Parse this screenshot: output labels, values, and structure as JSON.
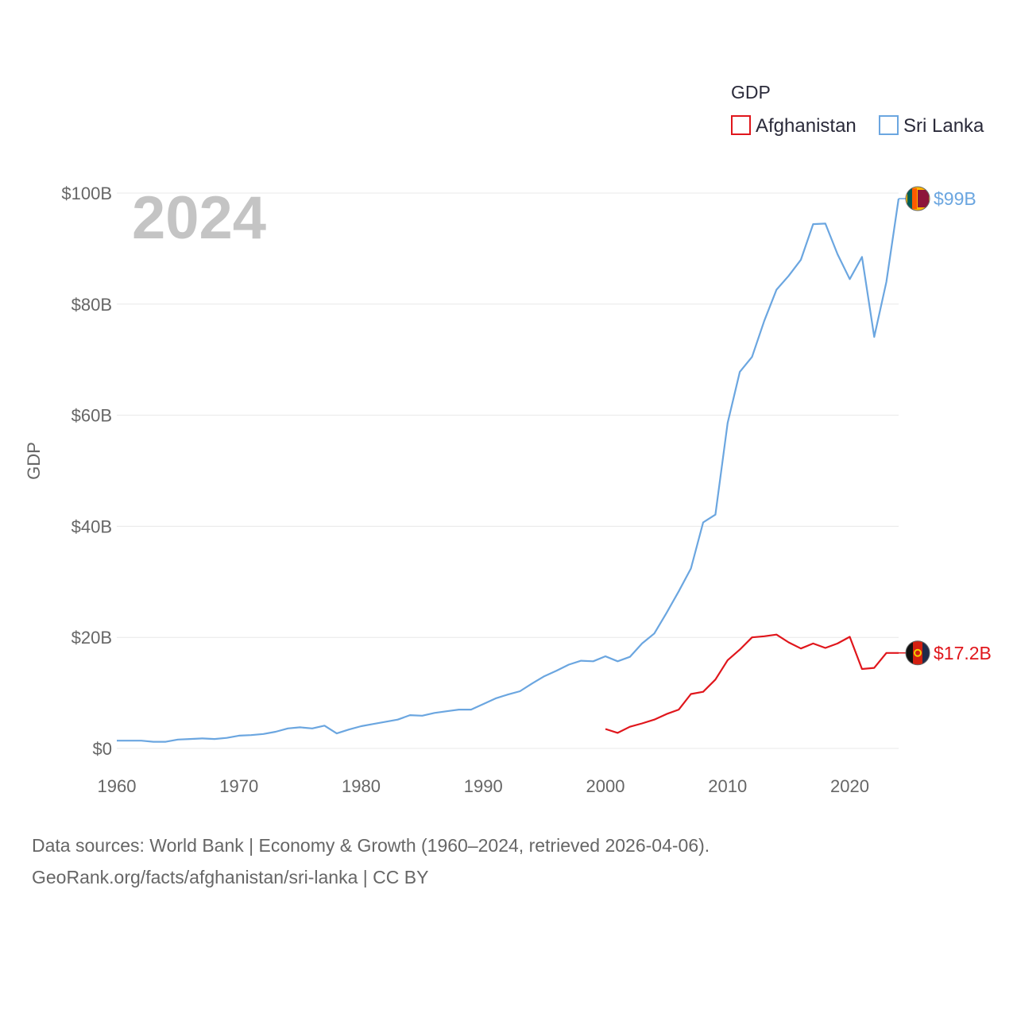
{
  "chart_data": {
    "type": "line",
    "title": "",
    "year_label": "2024",
    "ylabel": "GDP",
    "xlabel": "",
    "xlim": [
      1960,
      2024
    ],
    "ylim": [
      0,
      100
    ],
    "x_ticks": [
      1960,
      1970,
      1980,
      1990,
      2000,
      2010,
      2020
    ],
    "y_ticks": [
      {
        "value": 0,
        "label": "$0"
      },
      {
        "value": 20,
        "label": "$20B"
      },
      {
        "value": 40,
        "label": "$40B"
      },
      {
        "value": 60,
        "label": "$60B"
      },
      {
        "value": 80,
        "label": "$80B"
      },
      {
        "value": 100,
        "label": "$100B"
      }
    ],
    "grid": true,
    "legend": {
      "title": "GDP",
      "position": "top-right",
      "entries": [
        "Afghanistan",
        "Sri Lanka"
      ]
    },
    "series": [
      {
        "name": "Afghanistan",
        "color": "#e0161c",
        "end_label": "$17.2B",
        "x": [
          2000,
          2001,
          2002,
          2003,
          2004,
          2005,
          2006,
          2007,
          2008,
          2009,
          2010,
          2011,
          2012,
          2013,
          2014,
          2015,
          2016,
          2017,
          2018,
          2019,
          2020,
          2021,
          2022,
          2023,
          2024
        ],
        "values": [
          3.5,
          2.8,
          3.9,
          4.5,
          5.2,
          6.2,
          7.0,
          9.8,
          10.2,
          12.4,
          15.9,
          17.8,
          20.0,
          20.2,
          20.5,
          19.1,
          18.0,
          18.9,
          18.1,
          18.9,
          20.1,
          14.3,
          14.5,
          17.2,
          17.2
        ]
      },
      {
        "name": "Sri Lanka",
        "color": "#6ba6e0",
        "end_label": "$99B",
        "x": [
          1960,
          1961,
          1962,
          1963,
          1964,
          1965,
          1966,
          1967,
          1968,
          1969,
          1970,
          1971,
          1972,
          1973,
          1974,
          1975,
          1976,
          1977,
          1978,
          1979,
          1980,
          1981,
          1982,
          1983,
          1984,
          1985,
          1986,
          1987,
          1988,
          1989,
          1990,
          1991,
          1992,
          1993,
          1994,
          1995,
          1996,
          1997,
          1998,
          1999,
          2000,
          2001,
          2002,
          2003,
          2004,
          2005,
          2006,
          2007,
          2008,
          2009,
          2010,
          2011,
          2012,
          2013,
          2014,
          2015,
          2016,
          2017,
          2018,
          2019,
          2020,
          2021,
          2022,
          2023,
          2024
        ],
        "values": [
          1.4,
          1.4,
          1.4,
          1.2,
          1.2,
          1.6,
          1.7,
          1.8,
          1.7,
          1.9,
          2.3,
          2.4,
          2.6,
          3.0,
          3.6,
          3.8,
          3.6,
          4.1,
          2.7,
          3.4,
          4.0,
          4.4,
          4.8,
          5.2,
          6.0,
          5.9,
          6.4,
          6.7,
          7.0,
          7.0,
          8.0,
          9.0,
          9.7,
          10.3,
          11.7,
          13.0,
          14.0,
          15.1,
          15.8,
          15.7,
          16.6,
          15.7,
          16.5,
          18.9,
          20.7,
          24.4,
          28.3,
          32.4,
          40.7,
          42.1,
          58.6,
          67.8,
          70.5,
          77.0,
          82.6,
          85.1,
          88.0,
          94.4,
          94.5,
          89.0,
          84.5,
          88.5,
          74.1,
          84.0,
          99.0
        ]
      }
    ],
    "source_lines": [
      "Data sources: World Bank | Economy & Growth (1960–2024, retrieved 2026-04-06).",
      "GeoRank.org/facts/afghanistan/sri-lanka | CC BY"
    ]
  }
}
